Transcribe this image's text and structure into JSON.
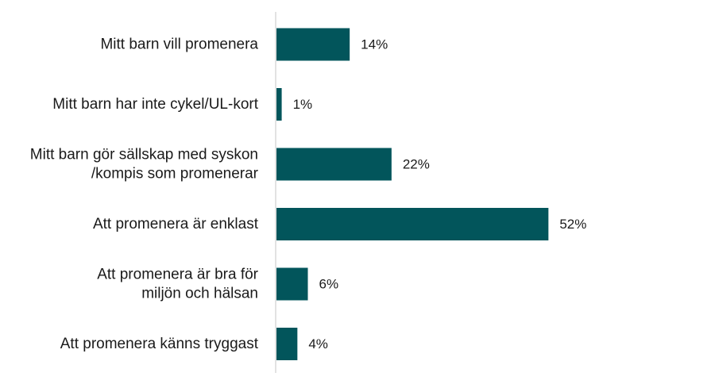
{
  "chart_data": {
    "type": "bar",
    "orientation": "horizontal",
    "categories": [
      [
        "Mitt barn vill promenera"
      ],
      [
        "Mitt barn har inte cykel/UL-kort"
      ],
      [
        "Mitt barn gör sällskap med syskon",
        "/kompis som promenerar"
      ],
      [
        "Att promenera är enklast"
      ],
      [
        "Att promenera är bra för",
        "miljön och hälsan"
      ],
      [
        "Att promenera känns tryggast"
      ]
    ],
    "values": [
      14,
      1,
      22,
      52,
      6,
      4
    ],
    "value_labels": [
      "14%",
      "1%",
      "22%",
      "52%",
      "6%",
      "4%"
    ],
    "unit": "%",
    "xlim": [
      0,
      60
    ],
    "grid": false,
    "bar_color": "#02555b",
    "axis_color": "#d9d9d9"
  }
}
